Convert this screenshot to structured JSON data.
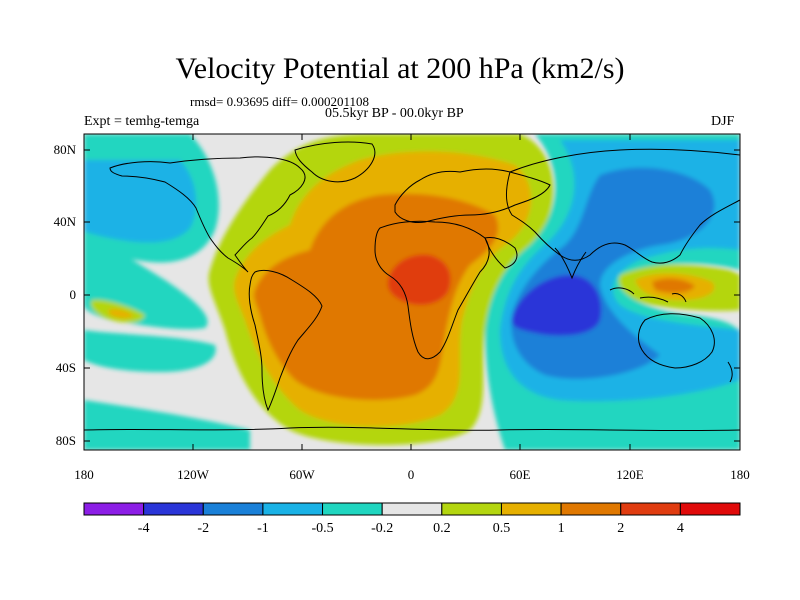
{
  "title": "Velocity Potential at 200 hPa (km2/s)",
  "stats": "rmsd= 0.93695 diff= 0.000201108",
  "period": "05.5kyr BP - 00.0kyr BP",
  "experiment": "Expt = temhg-temga",
  "season": "DJF",
  "axes": {
    "lat_labels": [
      "80N",
      "40N",
      "0",
      "40S",
      "80S"
    ],
    "lon_labels": [
      "180",
      "120W",
      "60W",
      "0",
      "60E",
      "120E",
      "180"
    ]
  },
  "colorbar": {
    "labels": [
      "-4",
      "-2",
      "-1",
      "-0.5",
      "-0.2",
      "0.2",
      "0.5",
      "1",
      "2",
      "4"
    ],
    "colors": [
      "#8c1ee6",
      "#2a35d8",
      "#1a80d8",
      "#1ab2e6",
      "#20d6c0",
      "#e6e6e6",
      "#b4d610",
      "#e6b000",
      "#e07800",
      "#e03c10",
      "#e00a0a"
    ]
  }
}
